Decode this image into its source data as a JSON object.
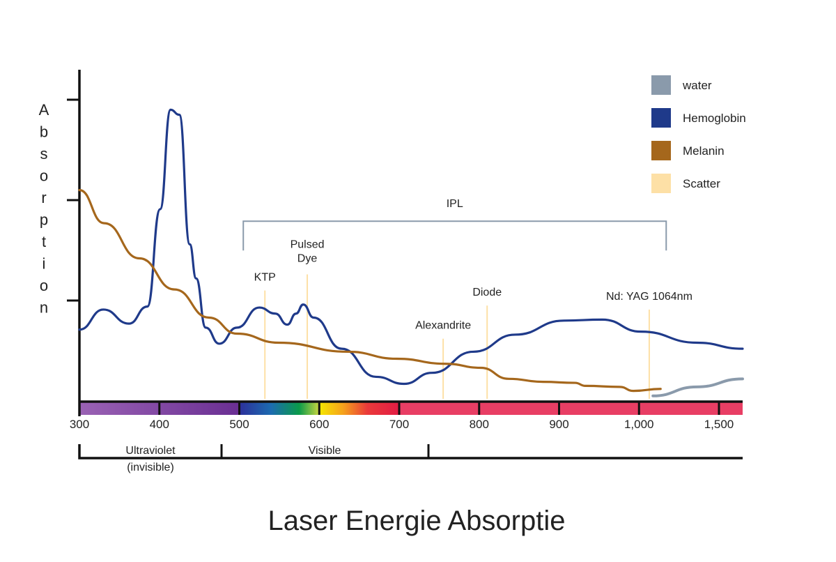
{
  "chart_data": {
    "type": "line",
    "title": "Laser Energie Absorptie",
    "ylabel": "Absorption",
    "xlabel": "",
    "x_ticks": [
      300,
      400,
      500,
      600,
      700,
      800,
      900,
      1000,
      1500
    ],
    "x_tick_labels": [
      "300",
      "400",
      "500",
      "600",
      "700",
      "800",
      "900",
      "1,000",
      "1,500"
    ],
    "xlim": [
      300,
      1650
    ],
    "ylim": [
      0,
      3.3
    ],
    "y_ticks": [
      1,
      2,
      3
    ],
    "grid": false,
    "legend_placement": "top-right",
    "series": [
      {
        "name": "water",
        "color": "#8a9aab",
        "points": [
          [
            1087,
            0.05
          ],
          [
            1362,
            0.14
          ],
          [
            1648,
            0.22
          ]
        ]
      },
      {
        "name": "Hemoglobin",
        "color": "#1f3a8a",
        "points": [
          [
            300,
            0.71
          ],
          [
            330,
            0.91
          ],
          [
            362,
            0.77
          ],
          [
            385,
            0.94
          ],
          [
            401,
            1.91
          ],
          [
            414,
            2.9
          ],
          [
            425,
            2.85
          ],
          [
            438,
            1.56
          ],
          [
            446,
            1.22
          ],
          [
            458,
            0.73
          ],
          [
            475,
            0.57
          ],
          [
            497,
            0.73
          ],
          [
            525,
            0.93
          ],
          [
            545,
            0.87
          ],
          [
            560,
            0.76
          ],
          [
            571,
            0.87
          ],
          [
            580,
            0.96
          ],
          [
            593,
            0.83
          ],
          [
            628,
            0.52
          ],
          [
            671,
            0.24
          ],
          [
            706,
            0.17
          ],
          [
            741,
            0.28
          ],
          [
            793,
            0.49
          ],
          [
            845,
            0.66
          ],
          [
            906,
            0.8
          ],
          [
            954,
            0.81
          ],
          [
            1013,
            0.69
          ],
          [
            1362,
            0.58
          ],
          [
            1648,
            0.52
          ]
        ]
      },
      {
        "name": "Melanin",
        "color": "#a5671c",
        "points": [
          [
            300,
            2.1
          ],
          [
            331,
            1.77
          ],
          [
            375,
            1.42
          ],
          [
            419,
            1.11
          ],
          [
            462,
            0.83
          ],
          [
            497,
            0.67
          ],
          [
            549,
            0.58
          ],
          [
            636,
            0.49
          ],
          [
            697,
            0.42
          ],
          [
            758,
            0.37
          ],
          [
            802,
            0.33
          ],
          [
            837,
            0.22
          ],
          [
            880,
            0.19
          ],
          [
            920,
            0.18
          ],
          [
            933,
            0.15
          ],
          [
            976,
            0.14
          ],
          [
            993,
            0.1
          ],
          [
            1135,
            0.12
          ]
        ]
      },
      {
        "name": "Scatter",
        "color": "#fde0a6",
        "points": []
      }
    ],
    "lasers": [
      {
        "label": "KTP",
        "nm": 532,
        "top": 1.1
      },
      {
        "label": "Pulsed",
        "label2": "Dye",
        "nm": 585,
        "top": 1.26
      },
      {
        "label": "Alexandrite",
        "nm": 755,
        "top": 0.62
      },
      {
        "label": "Diode",
        "nm": 810,
        "top": 0.95
      },
      {
        "label": "Nd: YAG 1064nm",
        "nm": 1064,
        "top": 0.91
      }
    ],
    "ipl": {
      "label": "IPL",
      "from": 505,
      "to": 1170,
      "level": 1.79
    },
    "regions": [
      {
        "label": "Ultraviolet",
        "label2": "(invisible)"
      },
      {
        "label": "Visible"
      }
    ]
  }
}
